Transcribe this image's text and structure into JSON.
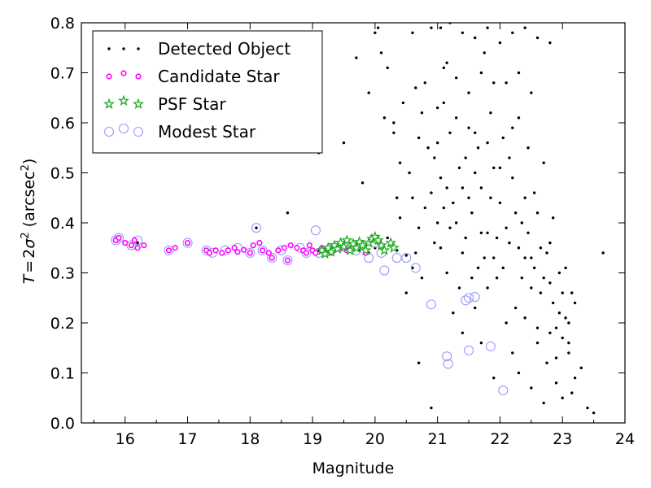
{
  "chart_data": {
    "type": "scatter",
    "xlabel": "Magnitude",
    "ylabel_prefix": "T = 2σ",
    "ylabel_unit": "(arcsec",
    "xlim": [
      15.3,
      24.0
    ],
    "ylim": [
      0.0,
      0.8
    ],
    "xticks": [
      16,
      17,
      18,
      19,
      20,
      21,
      22,
      23,
      24
    ],
    "yticks": [
      0.0,
      0.1,
      0.2,
      0.3,
      0.4,
      0.5,
      0.6,
      0.7,
      0.8
    ],
    "legend_position": "top-left",
    "series": [
      {
        "name": "Detected Object",
        "marker": "dot",
        "color": "#000000",
        "points": [
          [
            19.1,
            0.345
          ],
          [
            19.2,
            0.34
          ],
          [
            19.3,
            0.352
          ],
          [
            19.4,
            0.348
          ],
          [
            19.5,
            0.355
          ],
          [
            19.6,
            0.35
          ],
          [
            19.75,
            0.345
          ],
          [
            19.9,
            0.34
          ],
          [
            20.0,
            0.35
          ],
          [
            20.2,
            0.37
          ],
          [
            20.35,
            0.345
          ],
          [
            20.5,
            0.335
          ],
          [
            20.6,
            0.31
          ],
          [
            20.7,
            0.12
          ],
          [
            20.9,
            0.03
          ],
          [
            16.2,
            0.36
          ],
          [
            18.1,
            0.39
          ],
          [
            18.6,
            0.42
          ],
          [
            19.1,
            0.54
          ],
          [
            19.5,
            0.56
          ],
          [
            19.7,
            0.73
          ],
          [
            19.8,
            0.48
          ],
          [
            19.9,
            0.66
          ],
          [
            20.0,
            0.78
          ],
          [
            20.05,
            0.79
          ],
          [
            20.1,
            0.74
          ],
          [
            20.15,
            0.61
          ],
          [
            20.3,
            0.58
          ],
          [
            20.4,
            0.52
          ],
          [
            20.5,
            0.26
          ],
          [
            20.6,
            0.45
          ],
          [
            20.7,
            0.39
          ],
          [
            20.8,
            0.68
          ],
          [
            20.85,
            0.55
          ],
          [
            20.2,
            0.71
          ],
          [
            20.3,
            0.6
          ],
          [
            20.35,
            0.45
          ],
          [
            20.4,
            0.41
          ],
          [
            20.55,
            0.5
          ],
          [
            20.65,
            0.34
          ],
          [
            20.75,
            0.29
          ],
          [
            20.9,
            0.46
          ],
          [
            20.95,
            0.36
          ],
          [
            21.0,
            0.56
          ],
          [
            21.05,
            0.49
          ],
          [
            21.1,
            0.64
          ],
          [
            21.15,
            0.72
          ],
          [
            21.2,
            0.39
          ],
          [
            21.25,
            0.44
          ],
          [
            21.3,
            0.61
          ],
          [
            21.35,
            0.27
          ],
          [
            21.4,
            0.34
          ],
          [
            21.45,
            0.53
          ],
          [
            21.5,
            0.66
          ],
          [
            21.55,
            0.42
          ],
          [
            21.6,
            0.58
          ],
          [
            21.65,
            0.31
          ],
          [
            21.7,
            0.47
          ],
          [
            21.75,
            0.74
          ],
          [
            21.8,
            0.38
          ],
          [
            21.85,
            0.62
          ],
          [
            21.9,
            0.51
          ],
          [
            21.95,
            0.29
          ],
          [
            22.0,
            0.44
          ],
          [
            22.05,
            0.57
          ],
          [
            22.1,
            0.68
          ],
          [
            22.15,
            0.36
          ],
          [
            22.2,
            0.49
          ],
          [
            22.25,
            0.23
          ],
          [
            22.3,
            0.61
          ],
          [
            22.35,
            0.4
          ],
          [
            22.4,
            0.33
          ],
          [
            22.45,
            0.55
          ],
          [
            22.5,
            0.27
          ],
          [
            22.55,
            0.46
          ],
          [
            22.6,
            0.19
          ],
          [
            22.65,
            0.35
          ],
          [
            22.7,
            0.52
          ],
          [
            22.75,
            0.12
          ],
          [
            22.8,
            0.28
          ],
          [
            22.85,
            0.41
          ],
          [
            22.9,
            0.08
          ],
          [
            22.95,
            0.22
          ],
          [
            23.0,
            0.17
          ],
          [
            23.05,
            0.31
          ],
          [
            23.1,
            0.14
          ],
          [
            23.15,
            0.06
          ],
          [
            23.2,
            0.24
          ],
          [
            23.3,
            0.11
          ],
          [
            23.4,
            0.03
          ],
          [
            23.5,
            0.02
          ],
          [
            23.65,
            0.34
          ],
          [
            20.6,
            0.78
          ],
          [
            20.9,
            0.79
          ],
          [
            21.05,
            0.79
          ],
          [
            21.2,
            0.8
          ],
          [
            21.4,
            0.78
          ],
          [
            21.6,
            0.77
          ],
          [
            21.8,
            0.79
          ],
          [
            22.0,
            0.76
          ],
          [
            22.2,
            0.78
          ],
          [
            22.4,
            0.79
          ],
          [
            22.6,
            0.77
          ],
          [
            22.8,
            0.76
          ],
          [
            21.1,
            0.71
          ],
          [
            21.3,
            0.69
          ],
          [
            21.7,
            0.7
          ],
          [
            21.9,
            0.68
          ],
          [
            22.3,
            0.7
          ],
          [
            22.5,
            0.66
          ],
          [
            20.45,
            0.64
          ],
          [
            20.7,
            0.57
          ],
          [
            20.8,
            0.43
          ],
          [
            21.0,
            0.4
          ],
          [
            21.15,
            0.3
          ],
          [
            21.25,
            0.22
          ],
          [
            21.4,
            0.18
          ],
          [
            21.5,
            0.59
          ],
          [
            21.6,
            0.23
          ],
          [
            21.7,
            0.16
          ],
          [
            21.8,
            0.27
          ],
          [
            21.9,
            0.09
          ],
          [
            22.1,
            0.2
          ],
          [
            22.2,
            0.14
          ],
          [
            22.3,
            0.1
          ],
          [
            22.4,
            0.21
          ],
          [
            22.5,
            0.07
          ],
          [
            22.6,
            0.16
          ],
          [
            22.7,
            0.04
          ],
          [
            22.8,
            0.18
          ],
          [
            22.9,
            0.13
          ],
          [
            23.0,
            0.05
          ],
          [
            23.1,
            0.2
          ],
          [
            23.2,
            0.09
          ],
          [
            20.65,
            0.67
          ],
          [
            20.75,
            0.62
          ],
          [
            20.95,
            0.53
          ],
          [
            21.05,
            0.35
          ],
          [
            21.15,
            0.47
          ],
          [
            21.35,
            0.51
          ],
          [
            21.45,
            0.37
          ],
          [
            21.55,
            0.29
          ],
          [
            21.65,
            0.55
          ],
          [
            21.75,
            0.33
          ],
          [
            21.85,
            0.45
          ],
          [
            21.95,
            0.37
          ],
          [
            22.05,
            0.31
          ],
          [
            22.15,
            0.53
          ],
          [
            22.25,
            0.42
          ],
          [
            22.35,
            0.29
          ],
          [
            22.45,
            0.38
          ],
          [
            22.55,
            0.31
          ],
          [
            22.65,
            0.26
          ],
          [
            22.75,
            0.34
          ],
          [
            22.85,
            0.24
          ],
          [
            22.95,
            0.3
          ],
          [
            23.05,
            0.21
          ],
          [
            23.15,
            0.26
          ],
          [
            21.0,
            0.63
          ],
          [
            21.2,
            0.58
          ],
          [
            21.4,
            0.47
          ],
          [
            21.6,
            0.5
          ],
          [
            21.8,
            0.56
          ],
          [
            22.0,
            0.51
          ],
          [
            22.2,
            0.59
          ],
          [
            22.4,
            0.45
          ],
          [
            22.6,
            0.42
          ],
          [
            22.8,
            0.36
          ],
          [
            23.0,
            0.26
          ],
          [
            21.1,
            0.43
          ],
          [
            21.3,
            0.4
          ],
          [
            21.5,
            0.45
          ],
          [
            21.7,
            0.38
          ],
          [
            21.9,
            0.33
          ],
          [
            22.1,
            0.39
          ],
          [
            22.3,
            0.35
          ],
          [
            22.5,
            0.33
          ],
          [
            22.7,
            0.29
          ],
          [
            22.9,
            0.19
          ],
          [
            23.1,
            0.16
          ]
        ]
      },
      {
        "name": "Candidate Star",
        "marker": "circle",
        "color": "#ff00ff",
        "points": [
          [
            15.85,
            0.365
          ],
          [
            15.9,
            0.37
          ],
          [
            16.0,
            0.36
          ],
          [
            16.1,
            0.355
          ],
          [
            16.2,
            0.35
          ],
          [
            16.15,
            0.365
          ],
          [
            16.3,
            0.355
          ],
          [
            16.7,
            0.345
          ],
          [
            16.8,
            0.35
          ],
          [
            17.0,
            0.36
          ],
          [
            17.3,
            0.345
          ],
          [
            17.35,
            0.34
          ],
          [
            17.45,
            0.345
          ],
          [
            17.55,
            0.34
          ],
          [
            17.65,
            0.345
          ],
          [
            17.75,
            0.35
          ],
          [
            17.8,
            0.342
          ],
          [
            17.9,
            0.346
          ],
          [
            18.0,
            0.34
          ],
          [
            18.05,
            0.355
          ],
          [
            18.15,
            0.36
          ],
          [
            18.2,
            0.345
          ],
          [
            18.3,
            0.34
          ],
          [
            18.35,
            0.33
          ],
          [
            18.45,
            0.345
          ],
          [
            18.55,
            0.35
          ],
          [
            18.6,
            0.325
          ],
          [
            18.65,
            0.355
          ],
          [
            18.75,
            0.35
          ],
          [
            18.85,
            0.345
          ],
          [
            18.9,
            0.34
          ],
          [
            18.95,
            0.355
          ],
          [
            19.0,
            0.345
          ],
          [
            19.05,
            0.34
          ],
          [
            19.15,
            0.35
          ],
          [
            19.2,
            0.345
          ],
          [
            19.3,
            0.34
          ],
          [
            19.35,
            0.355
          ],
          [
            19.45,
            0.35
          ],
          [
            19.55,
            0.345
          ],
          [
            19.65,
            0.35
          ],
          [
            19.75,
            0.355
          ],
          [
            19.85,
            0.34
          ]
        ]
      },
      {
        "name": "PSF Star",
        "marker": "star",
        "color": "#22aa22",
        "points": [
          [
            19.15,
            0.345
          ],
          [
            19.2,
            0.338
          ],
          [
            19.25,
            0.35
          ],
          [
            19.3,
            0.342
          ],
          [
            19.35,
            0.355
          ],
          [
            19.4,
            0.348
          ],
          [
            19.45,
            0.36
          ],
          [
            19.5,
            0.352
          ],
          [
            19.55,
            0.365
          ],
          [
            19.6,
            0.345
          ],
          [
            19.65,
            0.358
          ],
          [
            19.7,
            0.35
          ],
          [
            19.75,
            0.362
          ],
          [
            19.8,
            0.355
          ],
          [
            19.85,
            0.345
          ],
          [
            19.9,
            0.36
          ],
          [
            19.95,
            0.368
          ],
          [
            20.0,
            0.372
          ],
          [
            20.05,
            0.365
          ],
          [
            20.1,
            0.355
          ],
          [
            20.15,
            0.345
          ],
          [
            20.25,
            0.36
          ],
          [
            20.3,
            0.35
          ]
        ]
      },
      {
        "name": "Modest Star",
        "marker": "ring",
        "color": "#9999ff",
        "points": [
          [
            15.85,
            0.365
          ],
          [
            15.9,
            0.37
          ],
          [
            16.1,
            0.355
          ],
          [
            16.2,
            0.365
          ],
          [
            16.7,
            0.345
          ],
          [
            17.0,
            0.36
          ],
          [
            17.3,
            0.345
          ],
          [
            17.4,
            0.34
          ],
          [
            17.6,
            0.345
          ],
          [
            17.8,
            0.35
          ],
          [
            18.0,
            0.34
          ],
          [
            18.1,
            0.39
          ],
          [
            18.2,
            0.345
          ],
          [
            18.35,
            0.33
          ],
          [
            18.5,
            0.345
          ],
          [
            18.6,
            0.325
          ],
          [
            18.8,
            0.35
          ],
          [
            18.9,
            0.34
          ],
          [
            19.05,
            0.385
          ],
          [
            19.1,
            0.34
          ],
          [
            19.3,
            0.35
          ],
          [
            19.5,
            0.352
          ],
          [
            19.7,
            0.345
          ],
          [
            19.9,
            0.33
          ],
          [
            20.0,
            0.36
          ],
          [
            20.1,
            0.34
          ],
          [
            20.15,
            0.305
          ],
          [
            20.35,
            0.33
          ],
          [
            20.5,
            0.33
          ],
          [
            20.65,
            0.31
          ],
          [
            20.9,
            0.237
          ],
          [
            21.15,
            0.133
          ],
          [
            21.17,
            0.118
          ],
          [
            21.45,
            0.245
          ],
          [
            21.5,
            0.25
          ],
          [
            21.6,
            0.252
          ],
          [
            21.5,
            0.145
          ],
          [
            21.85,
            0.153
          ],
          [
            22.05,
            0.065
          ]
        ]
      }
    ]
  }
}
